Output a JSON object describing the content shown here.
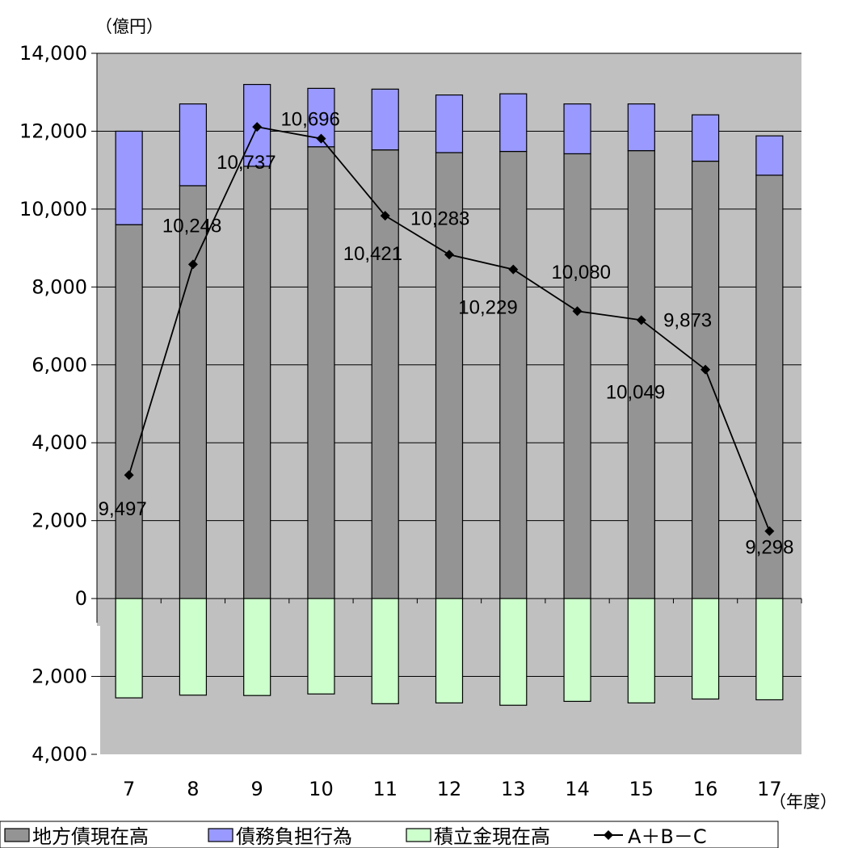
{
  "chart_data": {
    "type": "bar",
    "y_unit": "（億円）",
    "x_unit": "（年度）",
    "categories": [
      "7",
      "8",
      "9",
      "10",
      "11",
      "12",
      "13",
      "14",
      "15",
      "16",
      "17"
    ],
    "ylim": [
      -4000,
      14000
    ],
    "yticks": [
      14000,
      12000,
      10000,
      8000,
      6000,
      4000,
      2000,
      0,
      -2000,
      -4000
    ],
    "ytick_labels": [
      "14,000",
      "12,000",
      "10,000",
      "8,000",
      "6,000",
      "4,000",
      "2,000",
      "0",
      "2,000",
      "4,000"
    ],
    "grid": true,
    "legend_position": "bottom",
    "series": [
      {
        "name": "地方債現在高",
        "kind": "bar",
        "color": "#949494",
        "values": [
          9600,
          10600,
          11100,
          11600,
          11520,
          11450,
          11480,
          11420,
          11500,
          11230,
          10870
        ]
      },
      {
        "name": "債務負担行為",
        "kind": "bar",
        "color": "#9999ff",
        "values": [
          2400,
          2100,
          2100,
          1500,
          1560,
          1480,
          1480,
          1280,
          1200,
          1190,
          1010
        ]
      },
      {
        "name": "積立金現在高",
        "kind": "bar",
        "color": "#ccffcc",
        "values": [
          -2550,
          -2480,
          -2490,
          -2450,
          -2700,
          -2680,
          -2740,
          -2640,
          -2680,
          -2580,
          -2600
        ]
      },
      {
        "name": "A＋B－C",
        "kind": "line",
        "color": "#000000",
        "values": [
          3170,
          8580,
          12110,
          11810,
          9830,
          8830,
          8450,
          7380,
          7150,
          5880,
          1730
        ]
      }
    ],
    "data_labels": [
      "9,497",
      "10,248",
      "10,737",
      "10,696",
      "10,421",
      "10,283",
      "10,229",
      "10,080",
      "10,049",
      "9,873",
      "9,298"
    ]
  }
}
